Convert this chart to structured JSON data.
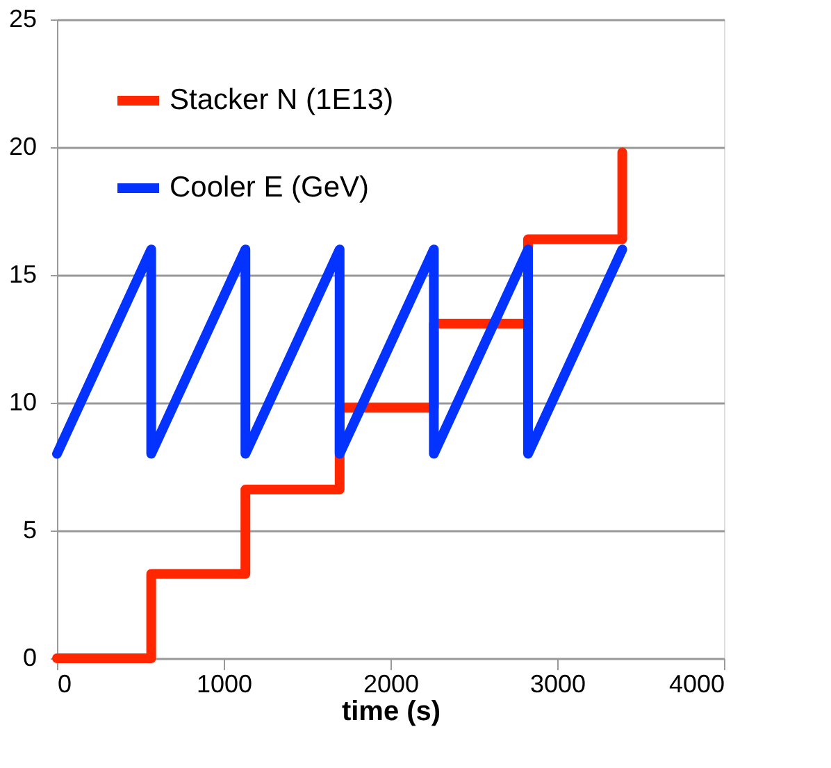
{
  "chart_data": {
    "type": "line",
    "xlabel": "time (s)",
    "xlim": [
      0,
      4000
    ],
    "xticks": [
      0,
      1000,
      2000,
      3000,
      4000
    ],
    "ylim": [
      0,
      25
    ],
    "yticks": [
      0,
      5,
      10,
      15,
      20,
      25
    ],
    "grid": "y",
    "legend": "top left",
    "line_style": "solid",
    "series": [
      {
        "name": "Stacker N (1E13)",
        "type": "step",
        "color": "#ff2600",
        "x": [
          0,
          565,
          1130,
          1695,
          2260,
          2825,
          3390
        ],
        "values": [
          0,
          3.3,
          6.6,
          9.8,
          13.1,
          16.4,
          19.8
        ]
      },
      {
        "name": "Cooler E (GeV)",
        "type": "line",
        "color": "#0433ff",
        "x": [
          0,
          565,
          565,
          1130,
          1130,
          1695,
          1695,
          2260,
          2260,
          2825,
          2825,
          3390
        ],
        "values": [
          8,
          16,
          8,
          16,
          8,
          16,
          8,
          16,
          8,
          16,
          8,
          16
        ]
      }
    ]
  }
}
